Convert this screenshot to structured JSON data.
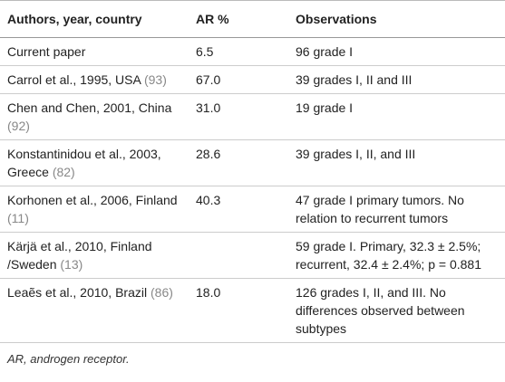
{
  "table": {
    "columns": [
      "Authors, year, country",
      "AR %",
      "Observations"
    ],
    "rows": [
      {
        "author": "Current paper",
        "ar": "6.5",
        "observations": "96 grade I"
      },
      {
        "author": "Carrol et al., 1995, USA",
        "ref": "(93)",
        "ar": "67.0",
        "observations": "39 grades I, II and III"
      },
      {
        "author": "Chen and Chen, 2001, China",
        "ref": "(92)",
        "ar": "31.0",
        "observations": "19 grade I"
      },
      {
        "author": "Konstantinidou et al., 2003, Greece",
        "ref": "(82)",
        "ar": "28.6",
        "observations": "39 grades I, II, and III"
      },
      {
        "author": "Korhonen et al., 2006, Finland",
        "ref": "(11)",
        "ar": "40.3",
        "observations": "47 grade I primary tumors. No relation to recurrent tumors"
      },
      {
        "author": "Kärjä et al., 2010, Finland /Sweden",
        "ref": "(13)",
        "ar": "",
        "observations": "59 grade I. Primary, 32.3 ± 2.5%; recurrent, 32.4 ± 2.4%; p = 0.881"
      },
      {
        "author": "Leaẽs et al., 2010, Brazil",
        "ref": "(86)",
        "ar": "18.0",
        "observations": "126 grades I, II, and III. No differences observed between subtypes"
      }
    ],
    "footnote": "AR, androgen receptor."
  }
}
